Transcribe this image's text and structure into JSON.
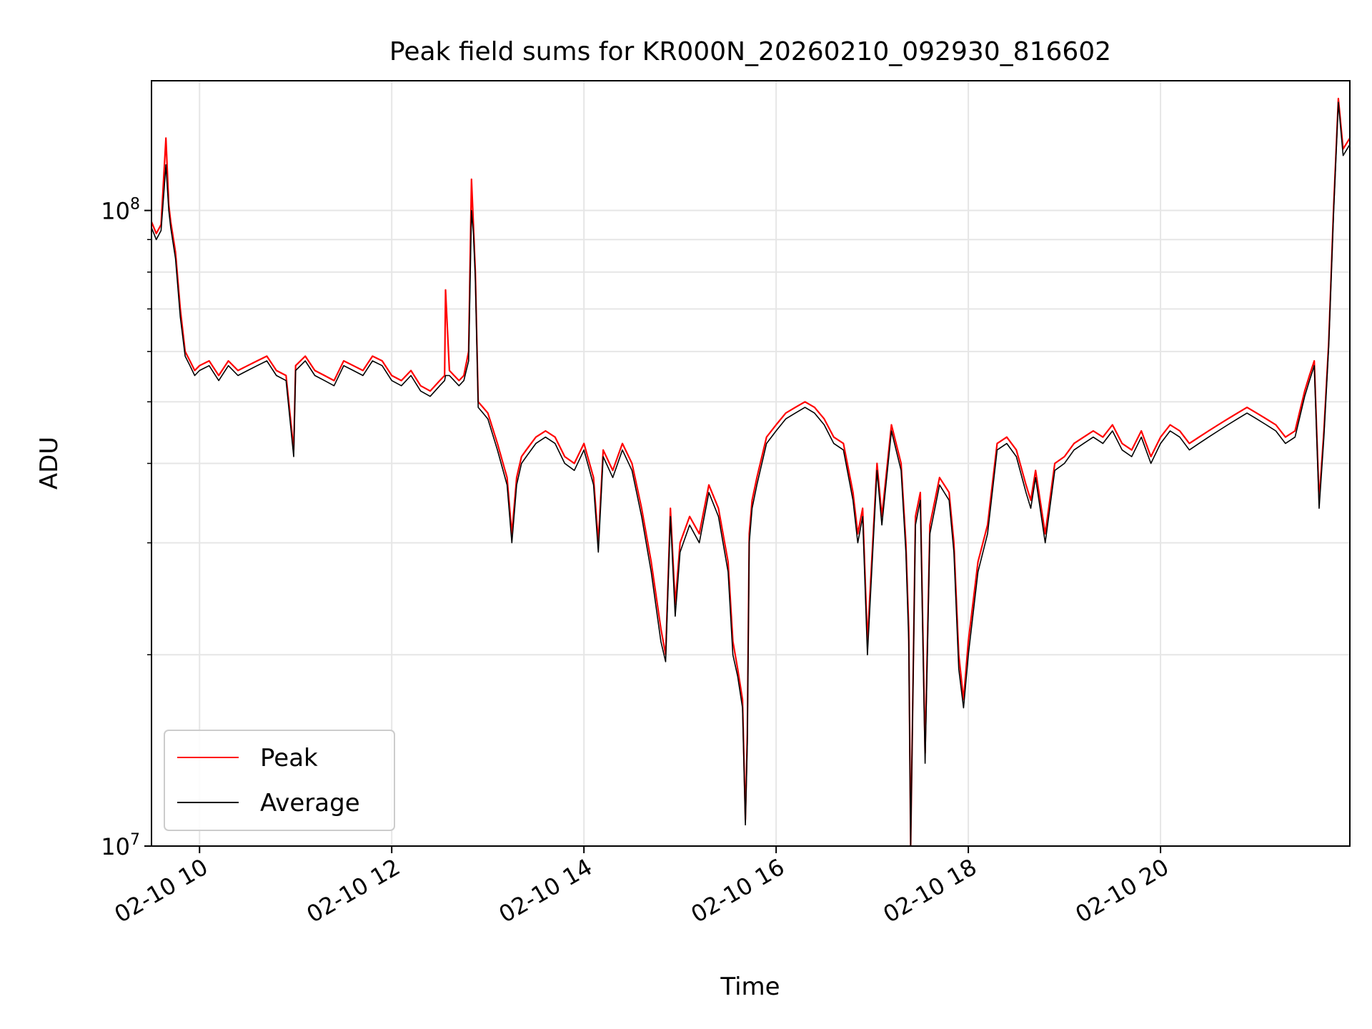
{
  "chart_data": {
    "type": "line",
    "title": "Peak field sums for KR000N_20260210_092930_816602",
    "xlabel": "Time",
    "ylabel": "ADU",
    "y_scale": "log",
    "ylim": [
      10000000,
      160000000
    ],
    "xlim_hours": [
      9.5,
      21.97
    ],
    "grid": true,
    "legend_location": "lower-left",
    "y_major_ticks": [
      {
        "value": 10000000,
        "base": "10",
        "exp": "7"
      },
      {
        "value": 100000000,
        "base": "10",
        "exp": "8"
      }
    ],
    "y_minor_ticks": [
      20000000,
      30000000,
      40000000,
      50000000,
      60000000,
      70000000,
      80000000,
      90000000
    ],
    "x_ticks": [
      {
        "hour": 10,
        "label": "02-10 10"
      },
      {
        "hour": 12,
        "label": "02-10 12"
      },
      {
        "hour": 14,
        "label": "02-10 14"
      },
      {
        "hour": 16,
        "label": "02-10 16"
      },
      {
        "hour": 18,
        "label": "02-10 18"
      },
      {
        "hour": 20,
        "label": "02-10 20"
      }
    ],
    "series": [
      {
        "name": "Peak",
        "color": "#ff0000",
        "x_hours": [
          9.5,
          9.55,
          9.6,
          9.65,
          9.68,
          9.7,
          9.75,
          9.8,
          9.85,
          9.9,
          9.95,
          10.0,
          10.1,
          10.2,
          10.3,
          10.4,
          10.5,
          10.6,
          10.7,
          10.8,
          10.9,
          10.98,
          11.0,
          11.1,
          11.2,
          11.3,
          11.4,
          11.5,
          11.6,
          11.7,
          11.8,
          11.9,
          12.0,
          12.1,
          12.2,
          12.3,
          12.4,
          12.5,
          12.55,
          12.56,
          12.6,
          12.7,
          12.75,
          12.8,
          12.83,
          12.85,
          12.87,
          12.9,
          12.95,
          13.0,
          13.1,
          13.2,
          13.25,
          13.3,
          13.35,
          13.4,
          13.5,
          13.6,
          13.7,
          13.8,
          13.9,
          14.0,
          14.1,
          14.15,
          14.2,
          14.3,
          14.4,
          14.5,
          14.6,
          14.7,
          14.8,
          14.85,
          14.9,
          14.95,
          15.0,
          15.1,
          15.2,
          15.3,
          15.4,
          15.5,
          15.55,
          15.6,
          15.65,
          15.68,
          15.7,
          15.72,
          15.75,
          15.8,
          15.9,
          16.0,
          16.1,
          16.2,
          16.3,
          16.4,
          16.5,
          16.6,
          16.7,
          16.8,
          16.85,
          16.9,
          16.95,
          17.0,
          17.05,
          17.1,
          17.2,
          17.3,
          17.35,
          17.38,
          17.4,
          17.45,
          17.5,
          17.55,
          17.6,
          17.7,
          17.8,
          17.85,
          17.9,
          17.95,
          18.0,
          18.1,
          18.2,
          18.3,
          18.4,
          18.5,
          18.6,
          18.65,
          18.7,
          18.8,
          18.9,
          19.0,
          19.1,
          19.2,
          19.3,
          19.4,
          19.5,
          19.6,
          19.7,
          19.8,
          19.9,
          20.0,
          20.1,
          20.2,
          20.3,
          20.4,
          20.5,
          20.6,
          20.7,
          20.8,
          20.9,
          21.0,
          21.1,
          21.2,
          21.3,
          21.4,
          21.5,
          21.55,
          21.6,
          21.65,
          21.7,
          21.75,
          21.8,
          21.85,
          21.9,
          21.97
        ],
        "values": [
          96000000,
          92000000,
          95000000,
          130000000,
          102000000,
          96000000,
          86000000,
          70000000,
          60000000,
          58000000,
          56000000,
          57000000,
          58000000,
          55000000,
          58000000,
          56000000,
          57000000,
          58000000,
          59000000,
          56000000,
          55000000,
          42000000,
          57000000,
          59000000,
          56000000,
          55000000,
          54000000,
          58000000,
          57000000,
          56000000,
          59000000,
          58000000,
          55000000,
          54000000,
          56000000,
          53000000,
          52000000,
          54000000,
          55000000,
          75000000,
          56000000,
          54000000,
          55000000,
          60000000,
          112000000,
          95000000,
          80000000,
          50000000,
          49000000,
          48000000,
          43000000,
          38000000,
          31000000,
          38000000,
          41000000,
          42000000,
          44000000,
          45000000,
          44000000,
          41000000,
          40000000,
          43000000,
          38000000,
          30000000,
          42000000,
          39000000,
          43000000,
          40000000,
          34000000,
          28000000,
          22000000,
          20000000,
          34000000,
          24000000,
          30000000,
          33000000,
          31000000,
          37000000,
          34000000,
          28000000,
          21000000,
          19000000,
          17000000,
          11000000,
          15000000,
          31000000,
          35000000,
          38000000,
          44000000,
          46000000,
          48000000,
          49000000,
          50000000,
          49000000,
          47000000,
          44000000,
          43000000,
          36000000,
          31000000,
          34000000,
          21000000,
          29000000,
          40000000,
          33000000,
          46000000,
          40000000,
          30000000,
          22000000,
          10000000,
          33000000,
          36000000,
          14000000,
          32000000,
          38000000,
          36000000,
          30000000,
          20000000,
          17000000,
          21000000,
          28000000,
          32000000,
          43000000,
          44000000,
          42000000,
          37000000,
          35000000,
          39000000,
          31000000,
          40000000,
          41000000,
          43000000,
          44000000,
          45000000,
          44000000,
          46000000,
          43000000,
          42000000,
          45000000,
          41000000,
          44000000,
          46000000,
          45000000,
          43000000,
          44000000,
          45000000,
          46000000,
          47000000,
          48000000,
          49000000,
          48000000,
          47000000,
          46000000,
          44000000,
          45000000,
          52000000,
          55000000,
          58000000,
          35000000,
          45000000,
          62000000,
          100000000,
          150000000,
          125000000,
          130000000
        ]
      },
      {
        "name": "Average",
        "color": "#000000",
        "x_hours": [
          9.5,
          9.55,
          9.6,
          9.65,
          9.68,
          9.7,
          9.75,
          9.8,
          9.85,
          9.9,
          9.95,
          10.0,
          10.1,
          10.2,
          10.3,
          10.4,
          10.5,
          10.6,
          10.7,
          10.8,
          10.9,
          10.98,
          11.0,
          11.1,
          11.2,
          11.3,
          11.4,
          11.5,
          11.6,
          11.7,
          11.8,
          11.9,
          12.0,
          12.1,
          12.2,
          12.3,
          12.4,
          12.5,
          12.55,
          12.56,
          12.6,
          12.7,
          12.75,
          12.8,
          12.83,
          12.85,
          12.87,
          12.9,
          12.95,
          13.0,
          13.1,
          13.2,
          13.25,
          13.3,
          13.35,
          13.4,
          13.5,
          13.6,
          13.7,
          13.8,
          13.9,
          14.0,
          14.1,
          14.15,
          14.2,
          14.3,
          14.4,
          14.5,
          14.6,
          14.7,
          14.8,
          14.85,
          14.9,
          14.95,
          15.0,
          15.1,
          15.2,
          15.3,
          15.4,
          15.5,
          15.55,
          15.6,
          15.65,
          15.68,
          15.7,
          15.72,
          15.75,
          15.8,
          15.9,
          16.0,
          16.1,
          16.2,
          16.3,
          16.4,
          16.5,
          16.6,
          16.7,
          16.8,
          16.85,
          16.9,
          16.95,
          17.0,
          17.05,
          17.1,
          17.2,
          17.3,
          17.35,
          17.38,
          17.4,
          17.45,
          17.5,
          17.55,
          17.6,
          17.7,
          17.8,
          17.85,
          17.9,
          17.95,
          18.0,
          18.1,
          18.2,
          18.3,
          18.4,
          18.5,
          18.6,
          18.65,
          18.7,
          18.8,
          18.9,
          19.0,
          19.1,
          19.2,
          19.3,
          19.4,
          19.5,
          19.6,
          19.7,
          19.8,
          19.9,
          20.0,
          20.1,
          20.2,
          20.3,
          20.4,
          20.5,
          20.6,
          20.7,
          20.8,
          20.9,
          21.0,
          21.1,
          21.2,
          21.3,
          21.4,
          21.5,
          21.55,
          21.6,
          21.65,
          21.7,
          21.75,
          21.8,
          21.85,
          21.9,
          21.97
        ],
        "values": [
          94000000,
          90000000,
          93000000,
          118000000,
          100000000,
          94000000,
          84000000,
          68000000,
          59000000,
          57000000,
          55000000,
          56000000,
          57000000,
          54000000,
          57000000,
          55000000,
          56000000,
          57000000,
          58000000,
          55000000,
          54000000,
          41000000,
          56000000,
          58000000,
          55000000,
          54000000,
          53000000,
          57000000,
          56000000,
          55000000,
          58000000,
          57000000,
          54000000,
          53000000,
          55000000,
          52000000,
          51000000,
          53000000,
          54000000,
          55000000,
          55000000,
          53000000,
          54000000,
          58000000,
          100000000,
          92000000,
          78000000,
          49000000,
          48000000,
          47000000,
          42000000,
          37000000,
          30000000,
          37000000,
          40000000,
          41000000,
          43000000,
          44000000,
          43000000,
          40000000,
          39000000,
          42000000,
          37000000,
          29000000,
          41000000,
          38000000,
          42000000,
          39000000,
          33000000,
          27000000,
          21000000,
          19500000,
          33000000,
          23000000,
          29000000,
          32000000,
          30000000,
          36000000,
          33000000,
          27000000,
          20000000,
          18500000,
          16500000,
          10800000,
          14500000,
          30000000,
          34000000,
          37000000,
          43000000,
          45000000,
          47000000,
          48000000,
          49000000,
          48000000,
          46000000,
          43000000,
          42000000,
          35000000,
          30000000,
          33000000,
          20000000,
          28000000,
          39000000,
          32000000,
          45000000,
          39000000,
          29000000,
          21000000,
          10000000,
          32000000,
          35000000,
          13500000,
          31000000,
          37000000,
          35000000,
          29000000,
          19000000,
          16500000,
          20000000,
          27000000,
          31000000,
          42000000,
          43000000,
          41000000,
          36000000,
          34000000,
          38000000,
          30000000,
          39000000,
          40000000,
          42000000,
          43000000,
          44000000,
          43000000,
          45000000,
          42000000,
          41000000,
          44000000,
          40000000,
          43000000,
          45000000,
          44000000,
          42000000,
          43000000,
          44000000,
          45000000,
          46000000,
          47000000,
          48000000,
          47000000,
          46000000,
          45000000,
          43000000,
          44000000,
          51000000,
          54000000,
          57000000,
          34000000,
          44000000,
          61000000,
          98000000,
          148000000,
          122000000,
          127000000
        ]
      }
    ]
  }
}
